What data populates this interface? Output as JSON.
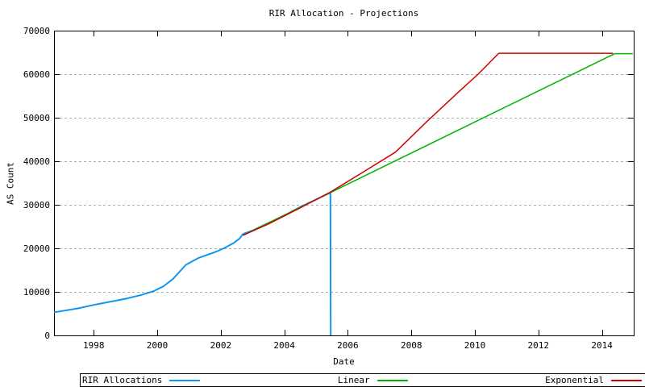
{
  "chart": {
    "title": "RIR Allocation - Projections",
    "xlabel": "Date",
    "ylabel": "AS Count"
  },
  "colors": {
    "rir_allocations": "#1096f0",
    "linear": "#00b400",
    "exponential": "#d00000",
    "grid": "#ababab",
    "axis": "#000000",
    "background": "#ffffff",
    "text": "#000000"
  },
  "chart_data": {
    "type": "line",
    "title": "RIR Allocation - Projections",
    "xlabel": "Date",
    "ylabel": "AS Count",
    "xlim": [
      1996.75,
      2015.0
    ],
    "ylim": [
      0,
      70000
    ],
    "xticks": [
      1998,
      2000,
      2002,
      2004,
      2006,
      2008,
      2010,
      2012,
      2014
    ],
    "yticks": [
      0,
      10000,
      20000,
      30000,
      40000,
      50000,
      60000,
      70000
    ],
    "grid": "horizontal-dashed",
    "legend_position": "bottom-box-outside",
    "series": [
      {
        "name": "RIR Allocations",
        "color": "#1096f0",
        "points": [
          [
            1996.75,
            5300
          ],
          [
            1997.0,
            5600
          ],
          [
            1997.5,
            6200
          ],
          [
            1998.0,
            7000
          ],
          [
            1998.5,
            7700
          ],
          [
            1999.0,
            8400
          ],
          [
            1999.5,
            9300
          ],
          [
            1999.9,
            10200
          ],
          [
            2000.2,
            11300
          ],
          [
            2000.5,
            13000
          ],
          [
            2000.9,
            16200
          ],
          [
            2001.3,
            17800
          ],
          [
            2001.8,
            19100
          ],
          [
            2002.1,
            20000
          ],
          [
            2002.4,
            21200
          ],
          [
            2002.6,
            22300
          ],
          [
            2002.7,
            23300
          ],
          [
            2003.0,
            24100
          ],
          [
            2003.5,
            25800
          ],
          [
            2004.0,
            27500
          ],
          [
            2004.5,
            29500
          ],
          [
            2005.0,
            31200
          ],
          [
            2005.45,
            32800
          ],
          [
            2005.46,
            0
          ]
        ]
      },
      {
        "name": "Linear",
        "color": "#00b400",
        "points": [
          [
            2002.7,
            23000
          ],
          [
            2014.4,
            64700
          ],
          [
            2014.97,
            64700
          ]
        ]
      },
      {
        "name": "Exponential",
        "color": "#d00000",
        "points": [
          [
            2002.7,
            23000
          ],
          [
            2003.5,
            25600
          ],
          [
            2004.5,
            29300
          ],
          [
            2005.45,
            32900
          ],
          [
            2006.5,
            37600
          ],
          [
            2007.5,
            42100
          ],
          [
            2008.5,
            49200
          ],
          [
            2009.5,
            56000
          ],
          [
            2010.1,
            60000
          ],
          [
            2010.75,
            64800
          ],
          [
            2014.35,
            64800
          ]
        ]
      }
    ]
  },
  "legend": {
    "items": [
      {
        "label": "RIR Allocations",
        "color": "#1096f0"
      },
      {
        "label": "Linear",
        "color": "#00b400"
      },
      {
        "label": "Exponential",
        "color": "#d00000"
      }
    ]
  }
}
